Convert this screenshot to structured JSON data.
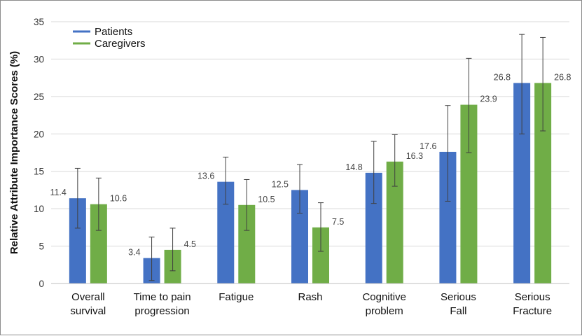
{
  "chart_data": {
    "type": "bar",
    "ylabel": "Relative Attribute Importance Scores (%)",
    "ylim": [
      0,
      35
    ],
    "yticks": [
      0,
      5,
      10,
      15,
      20,
      25,
      30,
      35
    ],
    "grid": true,
    "legend_position": "top-left",
    "categories": [
      [
        "Overall",
        "survival"
      ],
      [
        "Time to pain",
        "progression"
      ],
      [
        "Fatigue"
      ],
      [
        "Rash"
      ],
      [
        "Cognitive",
        "problem"
      ],
      [
        "Serious",
        "Fall"
      ],
      [
        "Serious",
        "Fracture"
      ]
    ],
    "series": [
      {
        "name": "Patients",
        "color": "#4472c4",
        "values": [
          11.4,
          3.4,
          13.6,
          12.5,
          14.8,
          17.6,
          26.8
        ],
        "labels": [
          "11.4",
          "3.4",
          "13.6",
          "12.5",
          "14.8",
          "17.6",
          "26.8"
        ],
        "error_low": [
          7.4,
          0.4,
          10.6,
          9.4,
          10.7,
          11.0,
          20.0
        ],
        "error_high": [
          15.4,
          6.2,
          16.9,
          15.9,
          19.0,
          23.8,
          33.3
        ]
      },
      {
        "name": "Caregivers",
        "color": "#70ad47",
        "values": [
          10.6,
          4.5,
          10.5,
          7.5,
          16.3,
          23.9,
          26.8
        ],
        "labels": [
          "10.6",
          "4.5",
          "10.5",
          "7.5",
          "16.3",
          "23.9",
          "26.8"
        ],
        "error_low": [
          7.1,
          1.7,
          7.1,
          4.3,
          13.0,
          17.5,
          20.4
        ],
        "error_high": [
          14.1,
          7.4,
          13.9,
          10.8,
          19.9,
          30.1,
          32.9
        ]
      }
    ]
  }
}
